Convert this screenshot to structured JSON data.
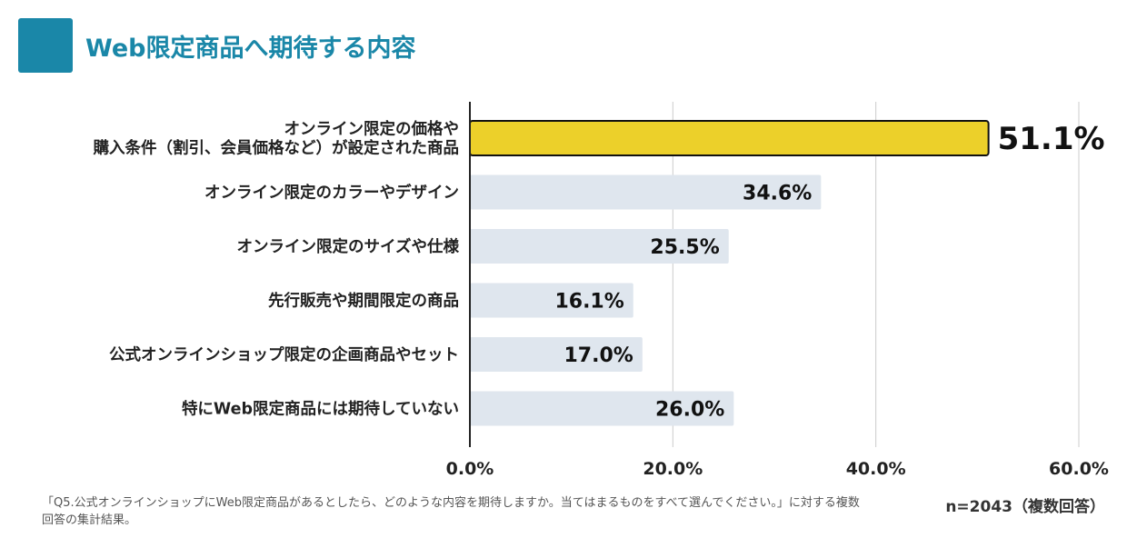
{
  "title": "Web限定商品へ期待する内容",
  "footnote": "「Q5.公式オンラインショップにWeb限定商品があるとしたら、どのような内容を期待しますか。当てはまるものをすべて選んでください。」に対する複数回答の集計結果。",
  "sample_size": "n=2043（複数回答）",
  "colors": {
    "accent": "#1a87a8",
    "highlight_bar": "#ecd02a",
    "bar": "#dfe6ee",
    "grid": "#cccccc"
  },
  "chart_data": {
    "type": "bar",
    "orientation": "horizontal",
    "categories": [
      [
        "オンライン限定の価格や",
        "購入条件（割引、会員価格など）が設定された商品"
      ],
      [
        "オンライン限定のカラーやデザイン"
      ],
      [
        "オンライン限定のサイズや仕様"
      ],
      [
        "先行販売や期間限定の商品"
      ],
      [
        "公式オンラインショップ限定の企画商品やセット"
      ],
      [
        "特にWeb限定商品には期待していない"
      ]
    ],
    "values": [
      51.1,
      34.6,
      25.5,
      16.1,
      17.0,
      26.0
    ],
    "value_labels": [
      "51.1%",
      "34.6%",
      "25.5%",
      "16.1%",
      "17.0%",
      "26.0%"
    ],
    "highlight_index": 0,
    "xlim": [
      0,
      60
    ],
    "xticks": [
      0,
      20,
      40,
      60
    ],
    "xtick_labels": [
      "0.0%",
      "20.0%",
      "40.0%",
      "60.0%"
    ],
    "grid": true,
    "legend": "none"
  }
}
